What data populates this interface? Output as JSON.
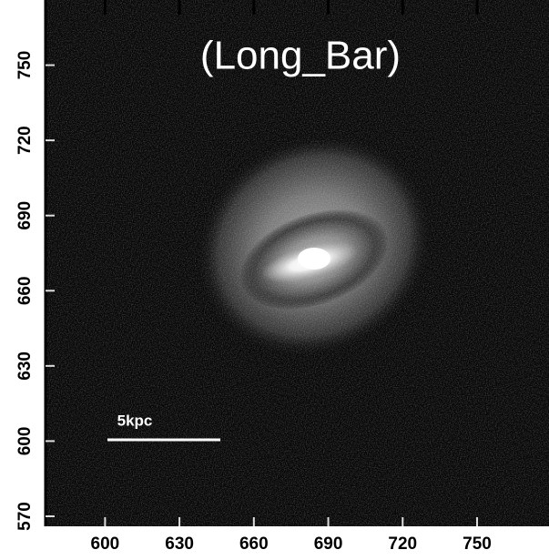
{
  "chart_data": {
    "type": "image",
    "title": "(Long_Bar)",
    "annotation": "5kpc",
    "xlim": [
      576,
      779
    ],
    "xticks": [
      600,
      630,
      660,
      690,
      720,
      750
    ],
    "ylim": [
      566,
      776
    ],
    "yticks": [
      570,
      600,
      630,
      660,
      690,
      720,
      750
    ]
  }
}
